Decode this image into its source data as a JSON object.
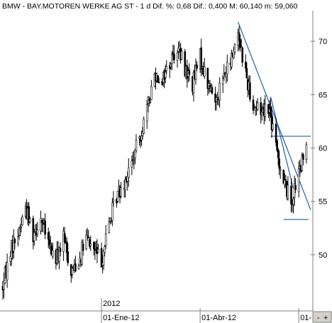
{
  "title": "BMW - BAY.MOTOREN WERKE AG ST - 1 d Dif. %: 0,68 Dif.: 0,400 M: 60,140 m: 59,060",
  "colors": {
    "background": "#ffffff",
    "title_text": "#000000",
    "candle": "#000000",
    "trendline": "#1f5fa8",
    "axis_line": "#808080",
    "grid": "#c0c0c0",
    "corner_button": "#d4d0c8"
  },
  "corner_button": {
    "left_glyph": "-",
    "right_glyph": "+"
  },
  "chart_data": {
    "type": "candlestick",
    "x_tick_labels": [
      {
        "date": "2012-01-02",
        "label": "01-Ene-12"
      },
      {
        "date": "2012-04-02",
        "label": "01-Abr-12"
      },
      {
        "date": "2012-07-02",
        "label": "01-"
      }
    ],
    "year_label": {
      "date": "2012-01-02",
      "label": "2012"
    },
    "y_tick_labels": [
      "50",
      "55",
      "60",
      "65",
      "70"
    ],
    "y_ticks": [
      50,
      55,
      60,
      65,
      70
    ],
    "xlim": [
      "2011-10-03",
      "2012-07-13"
    ],
    "ylim": [
      44.8,
      72.8
    ],
    "grid": false,
    "y_axis_side": "right",
    "close_path": [
      [
        "2011-10-03",
        47.0
      ],
      [
        "2011-10-10",
        50.5
      ],
      [
        "2011-10-17",
        52.0
      ],
      [
        "2011-10-24",
        54.5
      ],
      [
        "2011-10-31",
        52.0
      ],
      [
        "2011-11-07",
        53.5
      ],
      [
        "2011-11-14",
        51.0
      ],
      [
        "2011-11-21",
        49.5
      ],
      [
        "2011-11-28",
        51.5
      ],
      [
        "2011-12-05",
        48.5
      ],
      [
        "2011-12-12",
        49.5
      ],
      [
        "2011-12-19",
        51.5
      ],
      [
        "2011-12-26",
        50.5
      ],
      [
        "2012-01-02",
        49.5
      ],
      [
        "2012-01-09",
        53.0
      ],
      [
        "2012-01-16",
        55.5
      ],
      [
        "2012-01-23",
        57.0
      ],
      [
        "2012-01-30",
        58.5
      ],
      [
        "2012-02-06",
        61.0
      ],
      [
        "2012-02-13",
        63.5
      ],
      [
        "2012-02-20",
        67.0
      ],
      [
        "2012-02-27",
        66.5
      ],
      [
        "2012-03-05",
        68.0
      ],
      [
        "2012-03-12",
        69.5
      ],
      [
        "2012-03-19",
        67.5
      ],
      [
        "2012-03-26",
        66.0
      ],
      [
        "2012-04-02",
        68.5
      ],
      [
        "2012-04-09",
        66.0
      ],
      [
        "2012-04-16",
        64.5
      ],
      [
        "2012-04-23",
        66.5
      ],
      [
        "2012-04-30",
        68.0
      ],
      [
        "2012-05-07",
        71.0
      ],
      [
        "2012-05-14",
        67.0
      ],
      [
        "2012-05-21",
        64.0
      ],
      [
        "2012-05-28",
        63.5
      ],
      [
        "2012-06-04",
        64.0
      ],
      [
        "2012-06-11",
        60.0
      ],
      [
        "2012-06-18",
        57.0
      ],
      [
        "2012-06-25",
        55.0
      ],
      [
        "2012-07-02",
        57.5
      ],
      [
        "2012-07-09",
        60.0
      ]
    ],
    "trendlines": [
      {
        "from": [
          "2012-05-07",
          71.8
        ],
        "to": [
          "2012-07-13",
          54.2
        ]
      },
      {
        "from": [
          "2012-06-06",
          64.8
        ],
        "to": [
          "2012-06-27",
          56.2
        ]
      }
    ],
    "horizontal_lines": [
      {
        "value": 61.1,
        "from": "2012-06-06",
        "to": "2012-07-13"
      },
      {
        "value": 53.3,
        "from": "2012-06-18",
        "to": "2012-07-11"
      }
    ]
  }
}
